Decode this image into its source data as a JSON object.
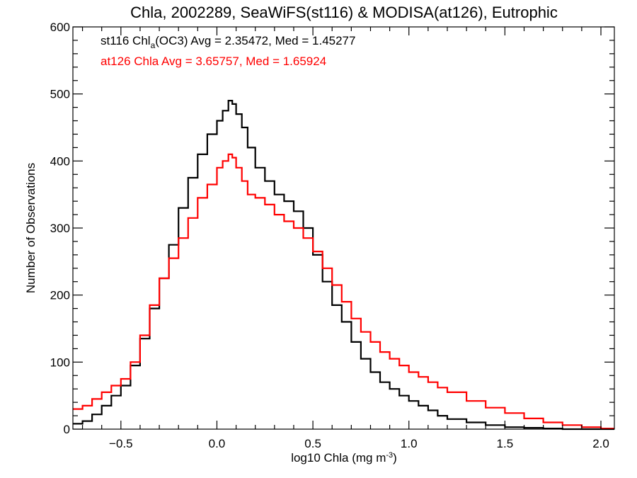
{
  "chart_data": {
    "type": "line",
    "style": "step-histogram",
    "title": "Chla, 2002289, SeaWiFS(st116) & MODISA(at126), Eutrophic",
    "xlabel": {
      "main": "log10 Chla (mg m",
      "sup": "-3",
      "tail": ")"
    },
    "ylabel": "Number of Observations",
    "xlim": [
      -0.75,
      2.07
    ],
    "ylim": [
      0,
      600
    ],
    "xticks": [
      -0.5,
      0.0,
      0.5,
      1.0,
      1.5,
      2.0
    ],
    "xtick_labels": [
      "−0.5",
      "0.0",
      "0.5",
      "1.0",
      "1.5",
      "2.0"
    ],
    "yticks": [
      0,
      100,
      200,
      300,
      400,
      500,
      600
    ],
    "ytick_labels": [
      "0",
      "100",
      "200",
      "300",
      "400",
      "500",
      "600"
    ],
    "grid": false,
    "annotations": [
      {
        "color": "#000000",
        "parts": [
          "st116 Chl",
          "a",
          "(OC3) Avg = 2.35472, Med = 1.45277"
        ]
      },
      {
        "color": "#ff0000",
        "parts": [
          "at126 Chla Avg = 3.65757, Med = 1.65924"
        ]
      }
    ],
    "series": [
      {
        "color": "#000000",
        "x": [
          -0.75,
          -0.7,
          -0.65,
          -0.6,
          -0.55,
          -0.5,
          -0.45,
          -0.4,
          -0.35,
          -0.3,
          -0.25,
          -0.2,
          -0.15,
          -0.1,
          -0.05,
          0.0,
          0.03,
          0.06,
          0.08,
          0.1,
          0.13,
          0.16,
          0.2,
          0.25,
          0.3,
          0.35,
          0.4,
          0.45,
          0.5,
          0.55,
          0.6,
          0.65,
          0.7,
          0.75,
          0.8,
          0.85,
          0.9,
          0.95,
          1.0,
          1.05,
          1.1,
          1.15,
          1.2,
          1.3,
          1.4,
          1.5,
          1.6,
          1.7,
          1.8
        ],
        "y": [
          8,
          12,
          22,
          35,
          50,
          65,
          95,
          135,
          180,
          225,
          275,
          330,
          375,
          410,
          440,
          460,
          475,
          490,
          485,
          470,
          450,
          420,
          390,
          370,
          350,
          340,
          325,
          300,
          260,
          220,
          185,
          160,
          130,
          105,
          85,
          70,
          60,
          50,
          42,
          35,
          28,
          20,
          15,
          10,
          6,
          3,
          2,
          1,
          0
        ]
      },
      {
        "color": "#ff0000",
        "x": [
          -0.75,
          -0.7,
          -0.65,
          -0.6,
          -0.55,
          -0.5,
          -0.45,
          -0.4,
          -0.35,
          -0.3,
          -0.25,
          -0.2,
          -0.15,
          -0.1,
          -0.05,
          0.0,
          0.03,
          0.06,
          0.08,
          0.1,
          0.13,
          0.16,
          0.2,
          0.25,
          0.3,
          0.35,
          0.4,
          0.45,
          0.5,
          0.55,
          0.6,
          0.65,
          0.7,
          0.75,
          0.8,
          0.85,
          0.9,
          0.95,
          1.0,
          1.05,
          1.1,
          1.15,
          1.2,
          1.3,
          1.4,
          1.5,
          1.6,
          1.7,
          1.8,
          1.9,
          2.0
        ],
        "y": [
          30,
          35,
          45,
          55,
          65,
          75,
          100,
          140,
          185,
          225,
          255,
          285,
          315,
          345,
          365,
          390,
          400,
          410,
          405,
          390,
          370,
          350,
          345,
          335,
          320,
          310,
          300,
          285,
          265,
          240,
          215,
          190,
          165,
          145,
          130,
          115,
          105,
          95,
          85,
          78,
          70,
          62,
          55,
          42,
          32,
          24,
          16,
          10,
          6,
          3,
          1
        ]
      }
    ]
  }
}
